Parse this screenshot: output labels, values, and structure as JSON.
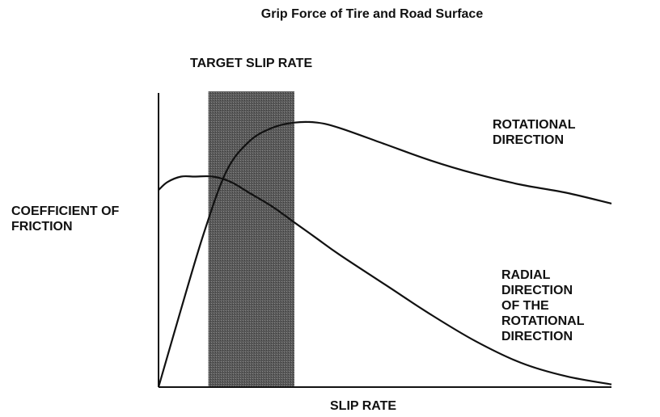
{
  "title": "Grip Force of Tire and Road Surface",
  "chart_data": {
    "type": "line",
    "title": "Grip Force of Tire and Road Surface",
    "xlabel": "SLIP RATE",
    "ylabel": [
      "COEFFICIENT OF",
      "FRICTION"
    ],
    "xlim": [
      0,
      1
    ],
    "ylim": [
      0,
      1
    ],
    "grid": false,
    "highlight_band": {
      "label": "TARGET SLIP RATE",
      "x": [
        0.11,
        0.3
      ]
    },
    "series": [
      {
        "name": [
          "ROTATIONAL",
          "DIRECTION"
        ],
        "x": [
          0,
          0.05,
          0.1,
          0.15,
          0.2,
          0.25,
          0.3,
          0.35,
          0.4,
          0.5,
          0.6,
          0.7,
          0.8,
          0.9,
          1.0
        ],
        "y": [
          0,
          0.29,
          0.57,
          0.8,
          0.91,
          0.96,
          0.98,
          0.98,
          0.96,
          0.9,
          0.84,
          0.79,
          0.75,
          0.72,
          0.68
        ]
      },
      {
        "name": [
          "RADIAL",
          "DIRECTION",
          "OF THE",
          "ROTATIONAL",
          "DIRECTION"
        ],
        "x": [
          0,
          0.02,
          0.05,
          0.08,
          0.12,
          0.16,
          0.2,
          0.25,
          0.3,
          0.35,
          0.4,
          0.5,
          0.6,
          0.7,
          0.8,
          0.9,
          1.0
        ],
        "y": [
          0.73,
          0.76,
          0.78,
          0.78,
          0.78,
          0.76,
          0.72,
          0.67,
          0.61,
          0.55,
          0.49,
          0.38,
          0.27,
          0.17,
          0.09,
          0.04,
          0.01
        ]
      }
    ]
  }
}
